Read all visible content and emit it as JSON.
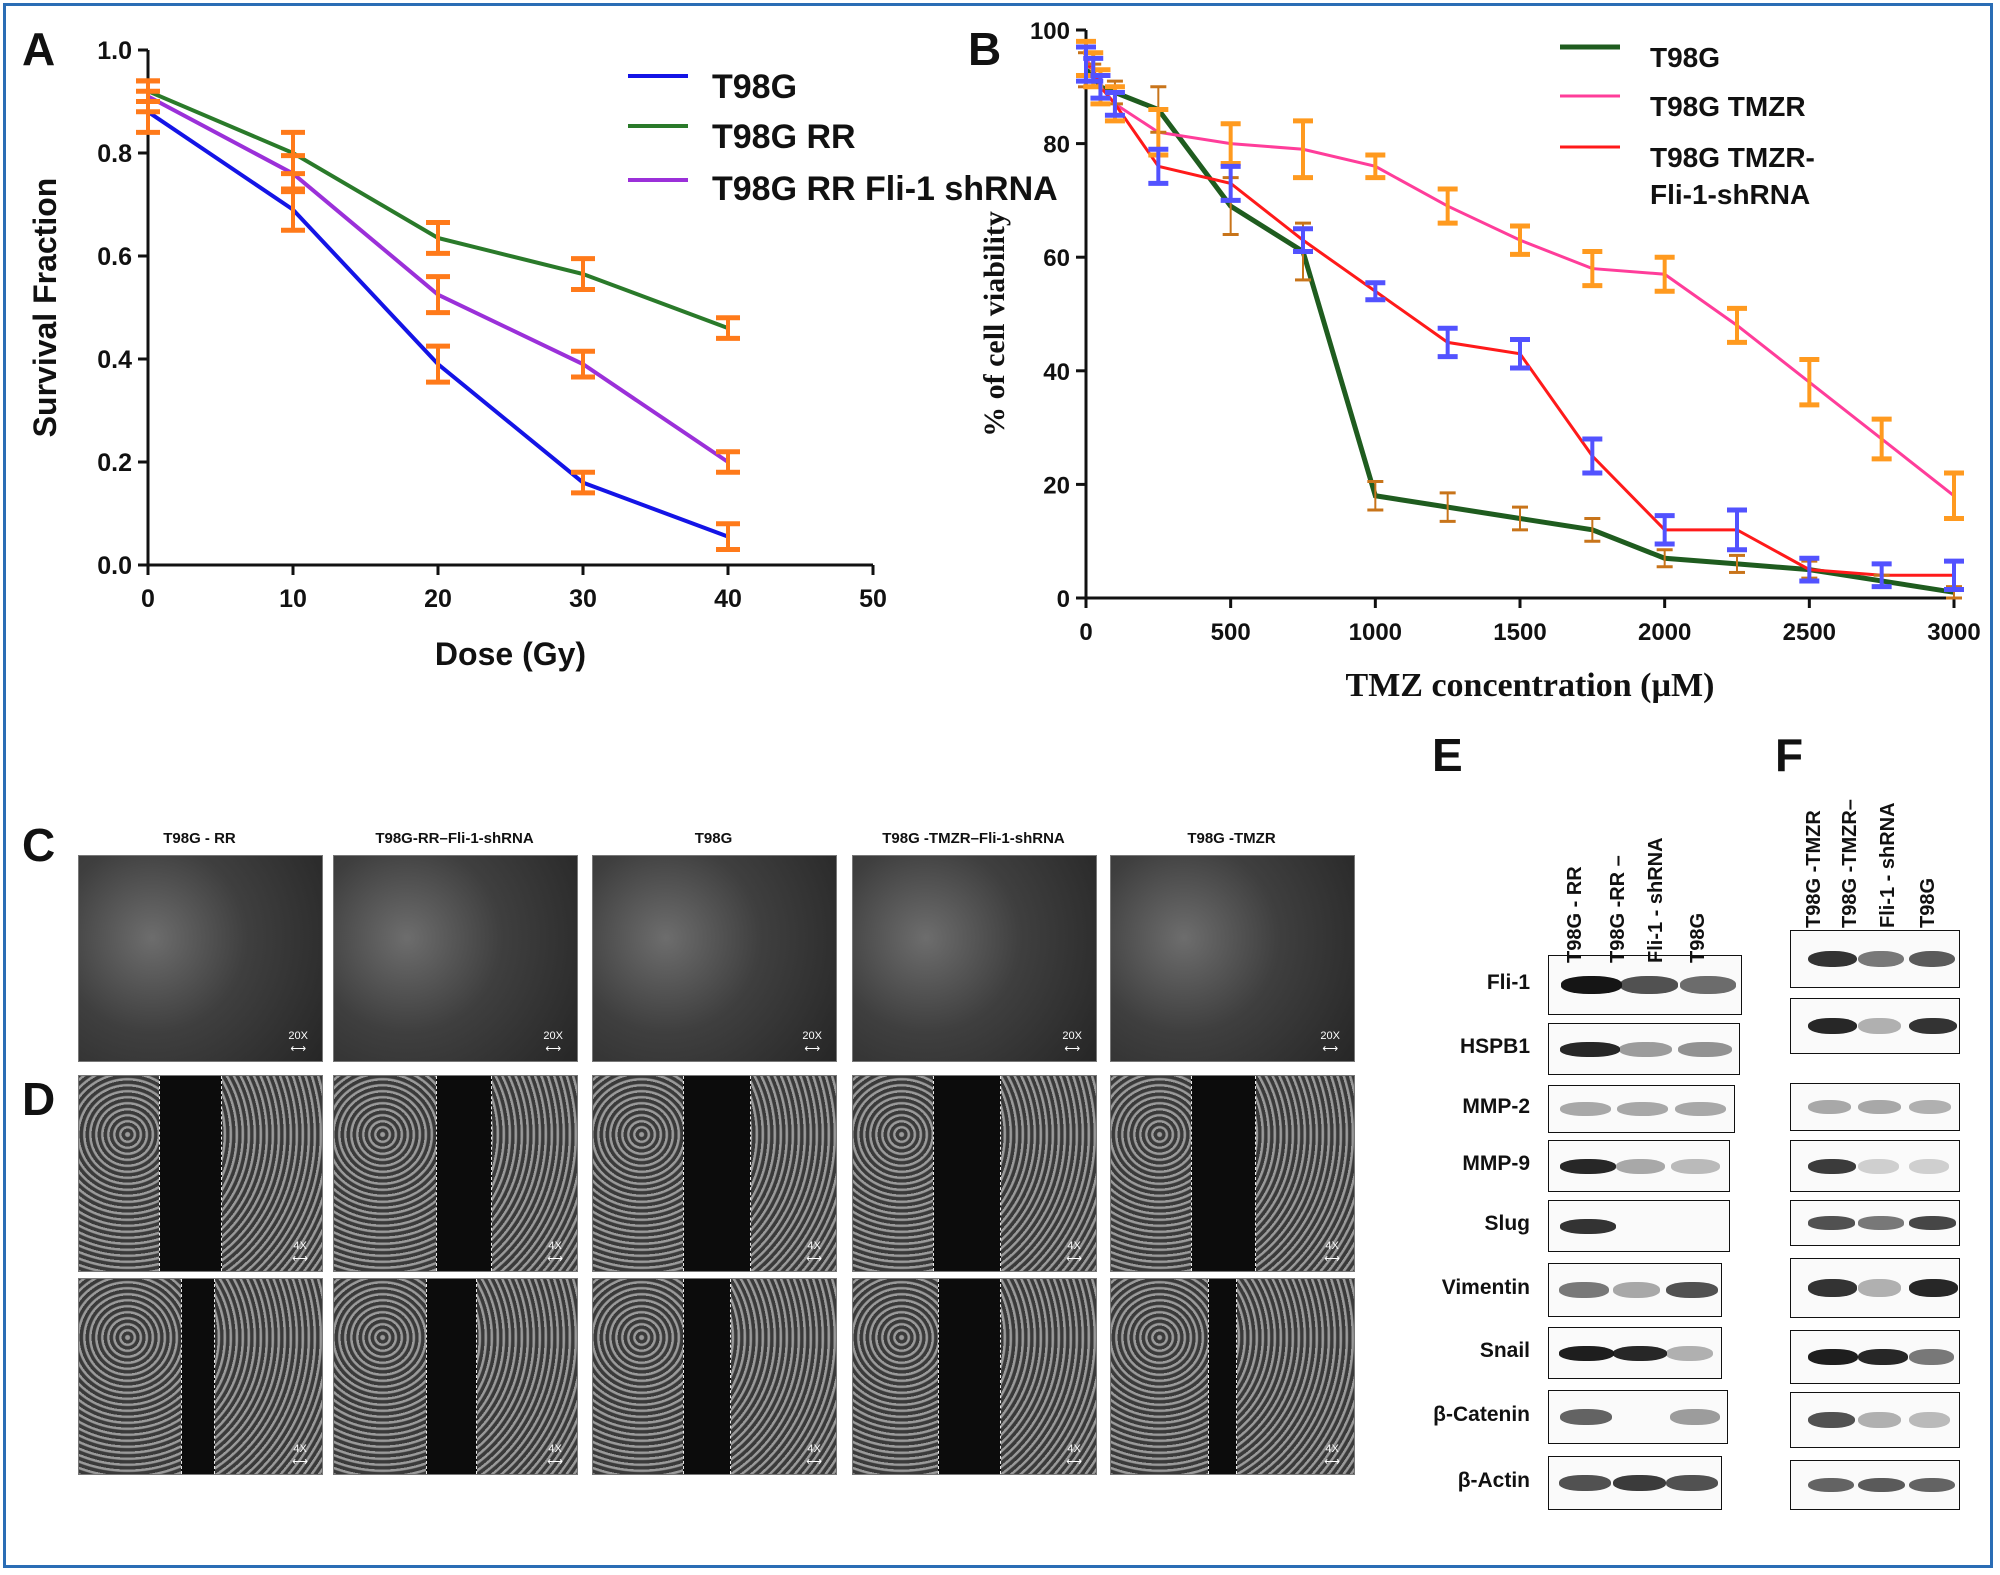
{
  "panels": {
    "A": "A",
    "B": "B",
    "C": "C",
    "D": "D",
    "E": "E",
    "F": "F"
  },
  "chart_data": [
    {
      "type": "line",
      "panel": "A",
      "xlabel": "Dose (Gy)",
      "ylabel": "Survival Fraction",
      "xlim": [
        0,
        50
      ],
      "ylim": [
        0.0,
        1.0
      ],
      "xticks": [
        "0",
        "10",
        "20",
        "30",
        "40",
        "50"
      ],
      "yticks": [
        "0.0",
        "0.2",
        "0.4",
        "0.6",
        "0.8",
        "1.0"
      ],
      "legend_position": "top-right",
      "x": [
        0,
        10,
        20,
        30,
        40
      ],
      "series": [
        {
          "name": "T98G",
          "color": "#1414e6",
          "values": [
            0.88,
            0.69,
            0.39,
            0.16,
            0.055
          ],
          "err": [
            0.04,
            0.04,
            0.035,
            0.02,
            0.025
          ]
        },
        {
          "name": "T98G RR",
          "color": "#2a7a2a",
          "values": [
            0.92,
            0.8,
            0.635,
            0.565,
            0.46
          ],
          "err": [
            0.02,
            0.04,
            0.03,
            0.03,
            0.02
          ]
        },
        {
          "name": "T98G RR Fli-1 shRNA",
          "color": "#9b30d9",
          "values": [
            0.91,
            0.76,
            0.525,
            0.39,
            0.2
          ],
          "err": [
            0.03,
            0.035,
            0.035,
            0.025,
            0.02
          ]
        }
      ],
      "error_bar_color": "#ff7a1a"
    },
    {
      "type": "line",
      "panel": "B",
      "xlabel": "TMZ concentration (µM)",
      "ylabel": "% of cell viability",
      "xlim": [
        0,
        3000
      ],
      "ylim": [
        0,
        100
      ],
      "xticks": [
        "0",
        "500",
        "1000",
        "1500",
        "2000",
        "2500",
        "3000"
      ],
      "yticks": [
        "0",
        "20",
        "40",
        "60",
        "80",
        "100"
      ],
      "legend_position": "top-right",
      "series": [
        {
          "name": "T98G",
          "color": "#1f5c1f",
          "x": [
            0,
            25,
            50,
            100,
            250,
            500,
            750,
            1000,
            1250,
            1500,
            1750,
            2000,
            2250,
            2500,
            2750,
            3000
          ],
          "values": [
            93,
            92,
            90,
            89,
            86,
            69,
            61,
            18,
            16,
            14,
            12,
            7,
            6,
            5,
            3,
            1
          ],
          "err": [
            3,
            2,
            2,
            2,
            4,
            5,
            5,
            2.5,
            2.5,
            2,
            2,
            1.5,
            1.5,
            1.5,
            1,
            1
          ],
          "err_color": "#c8741a"
        },
        {
          "name": "T98G TMZR",
          "color": "#ff3d9a",
          "x": [
            0,
            25,
            50,
            100,
            250,
            500,
            750,
            1000,
            1250,
            1500,
            1750,
            2000,
            2250,
            2500,
            2750,
            3000
          ],
          "values": [
            95,
            93,
            90,
            87,
            82,
            80,
            79,
            76,
            69,
            63,
            58,
            57,
            48,
            38,
            28,
            18
          ],
          "err": [
            3,
            3,
            3,
            3,
            4,
            3.5,
            5,
            2,
            3,
            2.5,
            3,
            3,
            3,
            4,
            3.5,
            4
          ],
          "err_color": "#ff9a1f"
        },
        {
          "name": "T98G TMZR-Fli-1-shRNA",
          "label_line1": "T98G TMZR-",
          "label_line2": "Fli-1-shRNA",
          "color": "#ff1a1a",
          "x": [
            0,
            25,
            50,
            100,
            250,
            500,
            750,
            1000,
            1250,
            1500,
            1750,
            2000,
            2250,
            2500,
            2750,
            3000
          ],
          "values": [
            94,
            93,
            90,
            87,
            76,
            73,
            63,
            54,
            45,
            43,
            25,
            12,
            12,
            5,
            4,
            4
          ],
          "err": [
            3,
            2,
            2,
            2,
            3,
            3,
            2,
            1.5,
            2.5,
            2.5,
            3,
            2.5,
            3.5,
            2,
            2,
            2.5
          ],
          "err_color": "#5252ff"
        }
      ]
    }
  ],
  "panel_c": {
    "labels": [
      "T98G - RR",
      "T98G-RR–Fli-1-shRNA",
      "T98G",
      "T98G -TMZR–Fli-1-shRNA",
      "T98G -TMZR"
    ],
    "magnification": "20X"
  },
  "panel_d": {
    "magnification": "4X"
  },
  "panel_e": {
    "lanes": [
      "T98G - RR",
      "T98G -RR –",
      "Fli-1 - shRNA",
      "T98G"
    ],
    "proteins": [
      "Fli-1",
      "HSPB1",
      "MMP-2",
      "MMP-9",
      "Slug",
      "Vimentin",
      "Snail",
      "β-Catenin",
      "β-Actin"
    ]
  },
  "panel_f": {
    "lanes": [
      "T98G -TMZR",
      "T98G -TMZR–",
      "Fli-1 - shRNA",
      "T98G"
    ]
  }
}
